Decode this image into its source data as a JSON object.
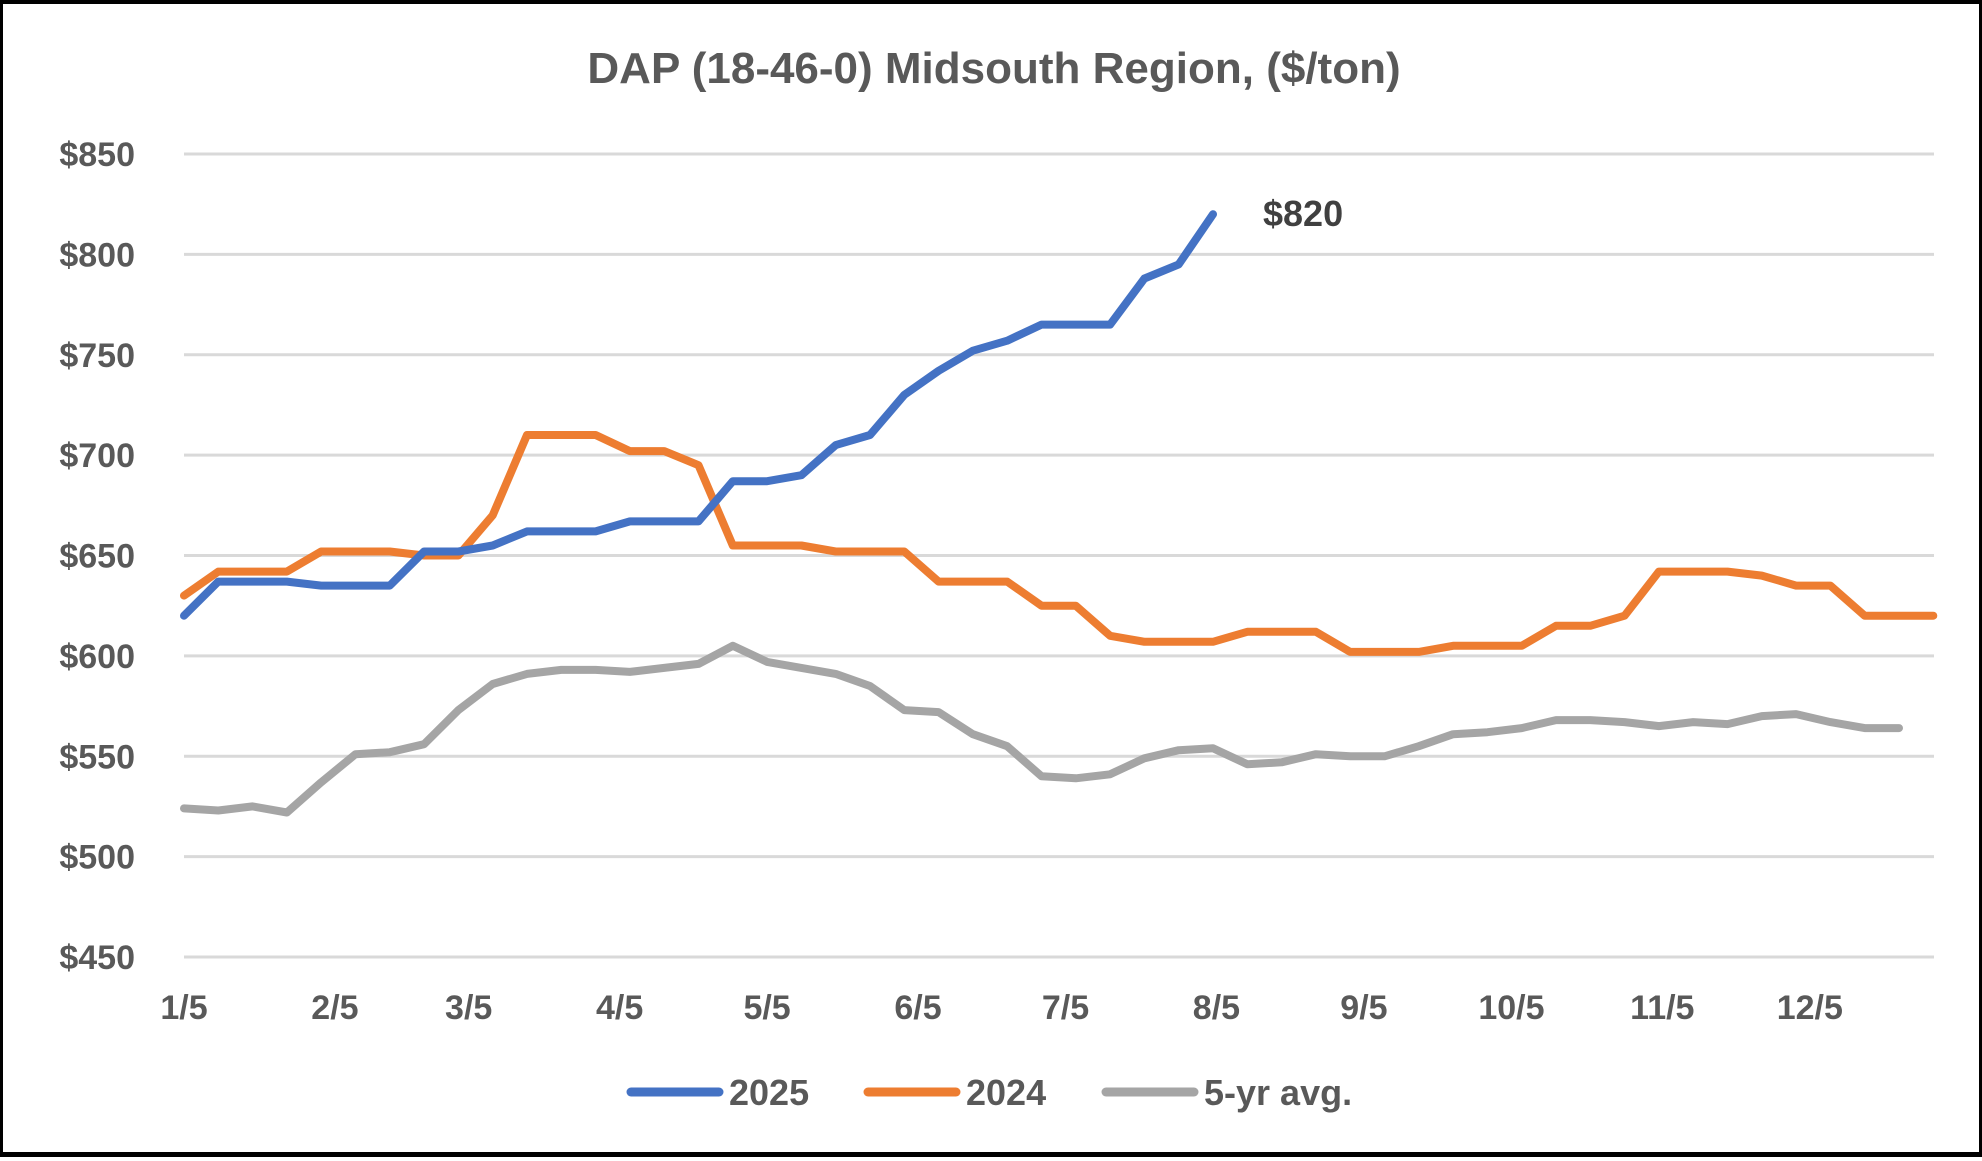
{
  "chart_data": {
    "type": "line",
    "title": "DAP (18-46-0) Midsouth Region, ($/ton)",
    "xlabel": "",
    "ylabel": "",
    "ylim": [
      450,
      850
    ],
    "y_ticks": [
      850,
      800,
      750,
      700,
      650,
      600,
      550,
      500,
      450
    ],
    "y_tick_labels": [
      "$850",
      "$800",
      "$750",
      "$700",
      "$650",
      "$600",
      "$550",
      "$500",
      "$450"
    ],
    "x_tick_labels": [
      "1/5",
      "2/5",
      "3/5",
      "4/5",
      "5/5",
      "6/5",
      "7/5",
      "8/5",
      "9/5",
      "10/5",
      "11/5",
      "12/5"
    ],
    "x_tick_week_index": [
      0,
      4.4,
      8.3,
      12.7,
      17.0,
      21.4,
      25.7,
      30.1,
      34.4,
      38.7,
      43.1,
      47.4
    ],
    "n_weeks": 52,
    "grid": true,
    "legend_position": "bottom",
    "series": [
      {
        "name": "2025",
        "color": "#4472c4",
        "values": [
          620,
          637,
          637,
          637,
          635,
          635,
          635,
          652,
          652,
          655,
          662,
          662,
          662,
          667,
          667,
          667,
          687,
          687,
          690,
          705,
          710,
          730,
          742,
          752,
          757,
          765,
          765,
          765,
          788,
          795,
          820
        ]
      },
      {
        "name": "2024",
        "color": "#ed7d31",
        "values": [
          630,
          642,
          642,
          642,
          652,
          652,
          652,
          650,
          650,
          670,
          710,
          710,
          710,
          702,
          702,
          695,
          655,
          655,
          655,
          652,
          652,
          652,
          637,
          637,
          637,
          625,
          625,
          610,
          607,
          607,
          607,
          612,
          612,
          612,
          602,
          602,
          602,
          605,
          605,
          605,
          615,
          615,
          620,
          642,
          642,
          642,
          640,
          635,
          635,
          620,
          620,
          620
        ]
      },
      {
        "name": "5-yr avg.",
        "color": "#a5a5a5",
        "values": [
          524,
          523,
          525,
          522,
          537,
          551,
          552,
          556,
          573,
          586,
          591,
          593,
          593,
          592,
          594,
          596,
          605,
          597,
          594,
          591,
          585,
          573,
          572,
          561,
          555,
          540,
          539,
          541,
          549,
          553,
          554,
          546,
          547,
          551,
          550,
          550,
          555,
          561,
          562,
          564,
          568,
          568,
          567,
          565,
          567,
          566,
          570,
          571,
          567,
          564,
          564
        ]
      }
    ],
    "annotations": [
      {
        "text": "$820",
        "series": "2025",
        "point_index": 30
      }
    ]
  }
}
